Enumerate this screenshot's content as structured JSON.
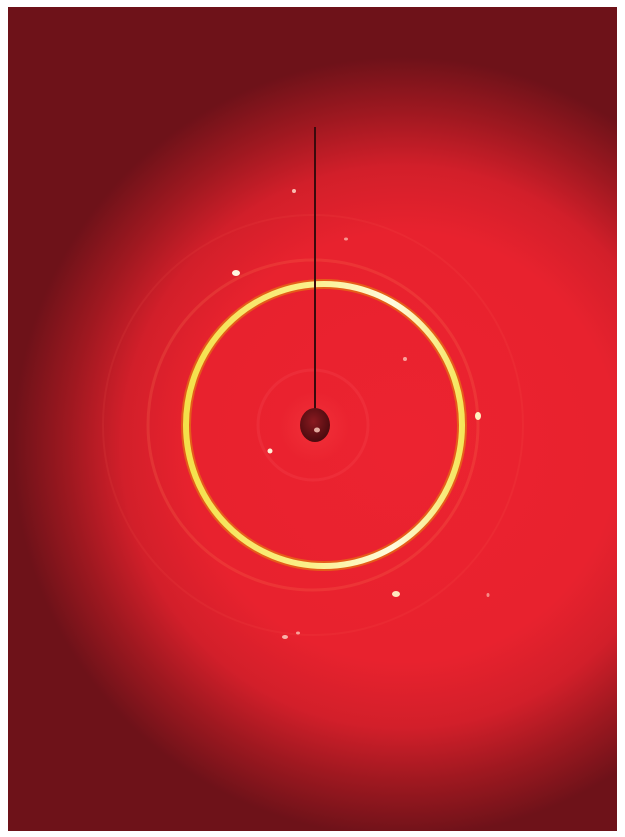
{
  "image": {
    "background_color": "#6e1219",
    "beam_color": "#e8222e",
    "ring_colors": [
      "#fff9c8",
      "#f2e23a",
      "#e2a400"
    ],
    "beamstop_color": "#6a1016"
  }
}
